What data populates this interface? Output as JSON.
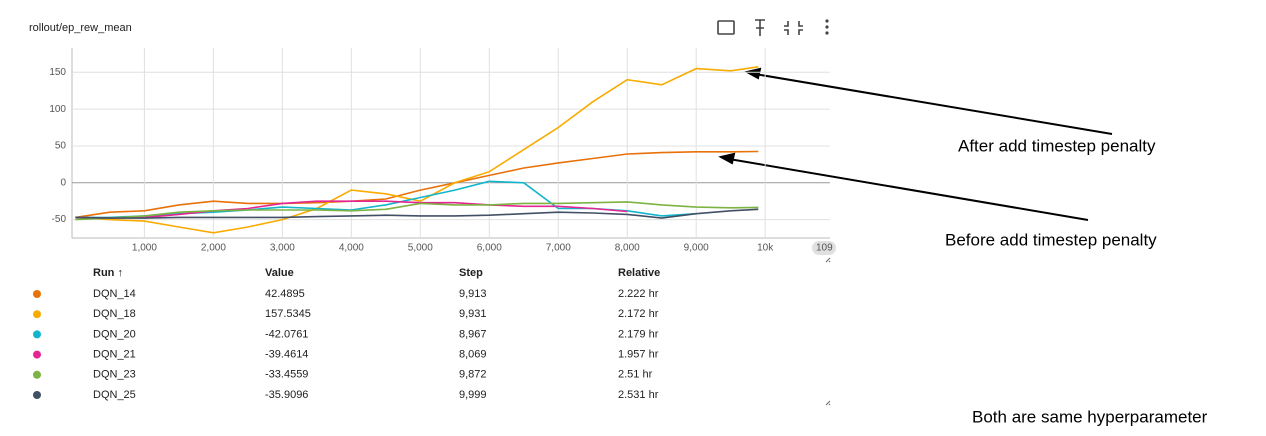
{
  "chart_data": {
    "type": "line",
    "title": "rollout/ep_rew_mean",
    "x": [
      0,
      500,
      1000,
      1500,
      2000,
      2500,
      3000,
      3500,
      4000,
      4500,
      5000,
      5500,
      6000,
      6500,
      7000,
      7500,
      8000,
      8500,
      9000,
      9500,
      9900
    ],
    "series": [
      {
        "name": "DQN_14",
        "color": "#e8710a",
        "values": [
          -47,
          -40,
          -38,
          -30,
          -25,
          -28,
          -28,
          -27,
          -25,
          -22,
          -10,
          0,
          10,
          20,
          27,
          33,
          39,
          41,
          42,
          42,
          42.5
        ]
      },
      {
        "name": "DQN_18",
        "color": "#f9ab00",
        "values": [
          -47,
          -50,
          -52,
          -60,
          -68,
          -60,
          -50,
          -35,
          -10,
          -15,
          -25,
          0,
          15,
          45,
          75,
          110,
          140,
          133,
          155,
          152,
          157.5
        ]
      },
      {
        "name": "DQN_20",
        "color": "#12b5cb",
        "values": [
          -47,
          -47,
          -45,
          -42,
          -40,
          -37,
          -33,
          -35,
          -37,
          -30,
          -20,
          -10,
          2,
          0,
          -35,
          -35,
          -38,
          -45,
          -42,
          null,
          null
        ]
      },
      {
        "name": "DQN_21",
        "color": "#e52592",
        "values": [
          -47,
          -48,
          -47,
          -43,
          -38,
          -35,
          -28,
          -25,
          -25,
          -25,
          -27,
          -27,
          -30,
          -32,
          -32,
          -35,
          -39,
          null,
          null,
          null,
          null
        ]
      },
      {
        "name": "DQN_23",
        "color": "#7cb342",
        "values": [
          -50,
          -48,
          -45,
          -40,
          -38,
          -37,
          -37,
          -37,
          -38,
          -36,
          -28,
          -30,
          -30,
          -28,
          -28,
          -27,
          -26,
          -30,
          -33,
          -34,
          -33.5
        ]
      },
      {
        "name": "DQN_25",
        "color": "#425066",
        "values": [
          -47,
          -48,
          -48,
          -47,
          -47,
          -47,
          -47,
          -46,
          -45,
          -44,
          -45,
          -45,
          -44,
          -42,
          -40,
          -41,
          -43,
          -48,
          -42,
          -38,
          -36
        ]
      }
    ],
    "xlim": [
      -50,
      10940
    ],
    "ylim": [
      -75,
      183
    ],
    "xticks": [
      {
        "value": 1000,
        "label": "1,000"
      },
      {
        "value": 2000,
        "label": "2,000"
      },
      {
        "value": 3000,
        "label": "3,000"
      },
      {
        "value": 4000,
        "label": "4,000"
      },
      {
        "value": 5000,
        "label": "5,000"
      },
      {
        "value": 6000,
        "label": "6,000"
      },
      {
        "value": 7000,
        "label": "7,000"
      },
      {
        "value": 8000,
        "label": "8,000"
      },
      {
        "value": 9000,
        "label": "9,000"
      },
      {
        "value": 10000,
        "label": "10k"
      }
    ],
    "yticks": [
      -50,
      0,
      50,
      100,
      150
    ],
    "cursor_label": "109",
    "grid": true
  },
  "table": {
    "columns": [
      "Run ↑",
      "Value",
      "Step",
      "Relative"
    ],
    "rows": [
      [
        "42.4895",
        "9,913",
        "2.222 hr"
      ],
      [
        "157.5345",
        "9,931",
        "2.172 hr"
      ],
      [
        "-42.0761",
        "8,967",
        "2.179 hr"
      ],
      [
        "-39.4614",
        "8,069",
        "1.957 hr"
      ],
      [
        "-33.4559",
        "9,872",
        "2.51 hr"
      ],
      [
        "-35.9096",
        "9,999",
        "2.531 hr"
      ]
    ]
  },
  "annotations": [
    "After add timestep penalty",
    "Before add timestep penalty",
    "Both are same hyperparameter"
  ]
}
